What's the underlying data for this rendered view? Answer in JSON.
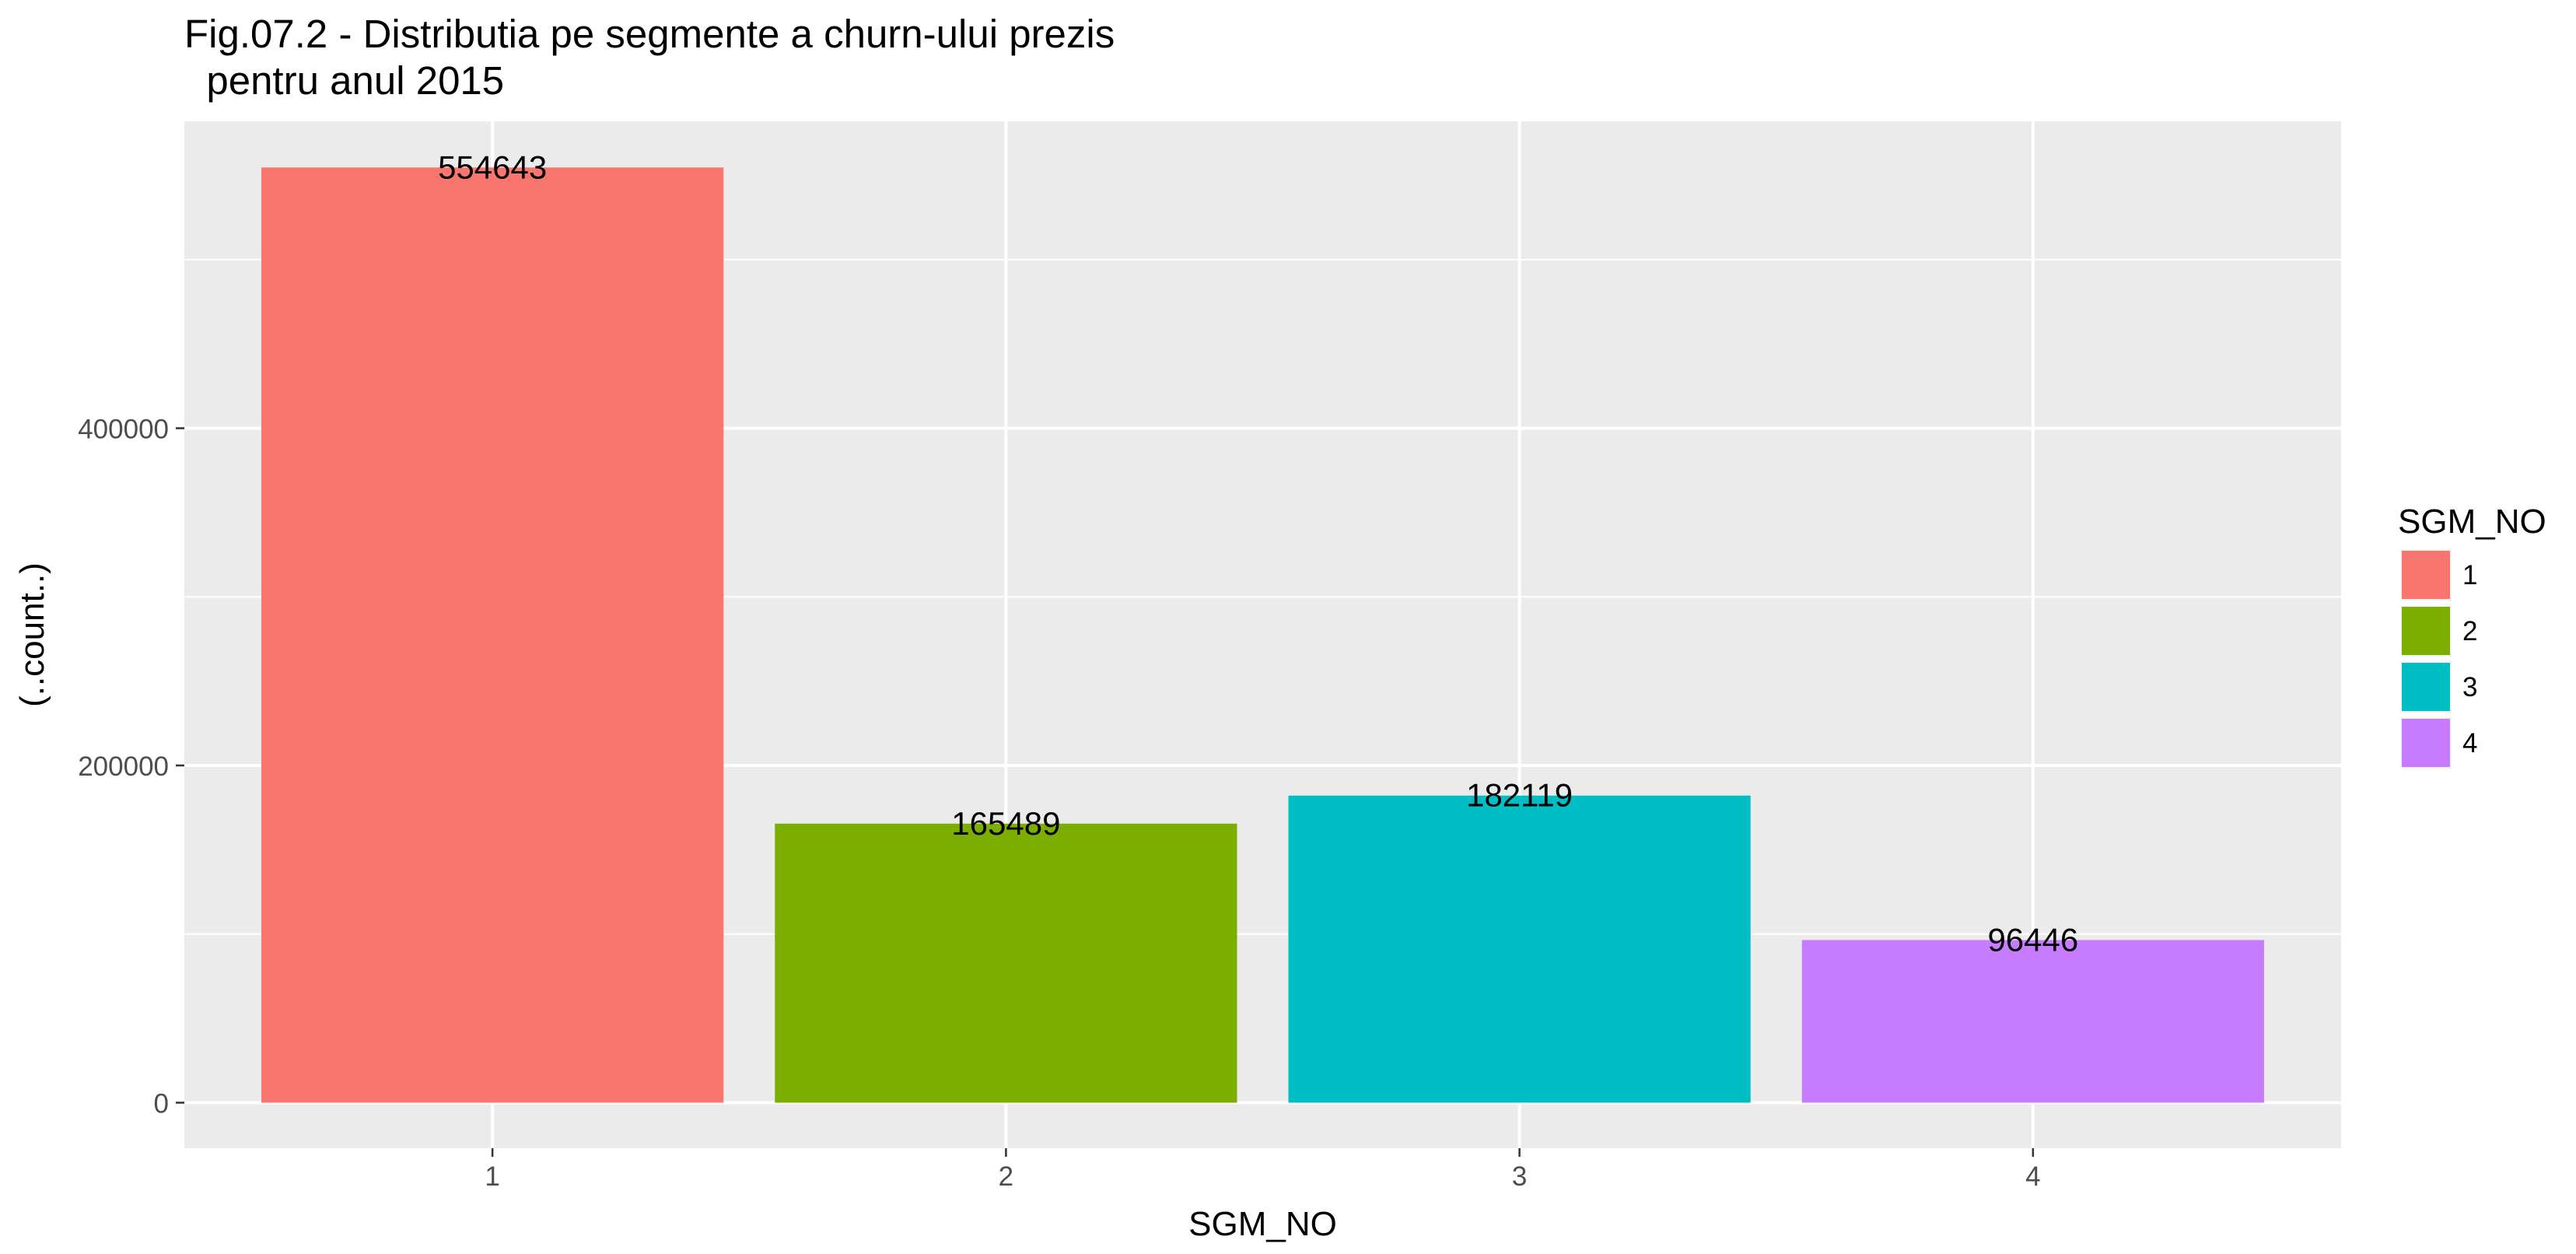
{
  "chart_data": {
    "type": "bar",
    "title_lines": [
      "Fig.07.2 - Distributia pe segmente a churn-ului prezis",
      "  pentru anul 2015"
    ],
    "xlabel": "SGM_NO",
    "ylabel": "(..count..)",
    "categories": [
      "1",
      "2",
      "3",
      "4"
    ],
    "values": [
      554643,
      165489,
      182119,
      96446
    ],
    "value_labels": [
      "554643",
      "165489",
      "182119",
      "96446"
    ],
    "colors": [
      "#F8766D",
      "#7CAE00",
      "#00BFC4",
      "#C77CFF"
    ],
    "ylim": [
      -27000,
      582000
    ],
    "y_ticks": [
      0,
      200000,
      400000
    ],
    "y_tick_labels": [
      "0",
      "200000",
      "400000"
    ],
    "y_minor_gridlines": [
      100000,
      300000,
      500000
    ],
    "grid": true,
    "panel_background": "#EBEBEB",
    "legend": {
      "title": "SGM_NO",
      "position": "right",
      "entries": [
        "1",
        "2",
        "3",
        "4"
      ]
    }
  }
}
